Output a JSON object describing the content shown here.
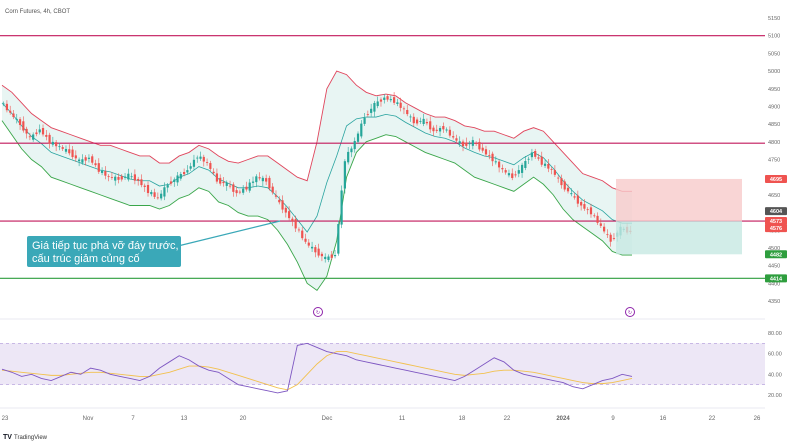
{
  "header": {
    "title": "Corn Futures, 4h, CBOT"
  },
  "brand": {
    "logo": "TV",
    "name": "TradingView"
  },
  "annotation": {
    "line1": "Giá tiếp tục phá vỡ đáy trước,",
    "line2": "cấu trúc giảm củng cố"
  },
  "colors": {
    "candle_up": "#26a69a",
    "candle_down": "#ef5350",
    "bb_upper": "#e0455c",
    "bb_lower": "#3aa64a",
    "bb_mid": "#2aa4a0",
    "bb_fill": "#e6f4f2",
    "level_red": "#c2185b",
    "level_green": "#2e9e3e",
    "rsi_line": "#7e57c2",
    "rsi_ma": "#f2c14e",
    "rsi_band": "#ede7f6",
    "note_bg": "#3aa8b8",
    "risk_fill": "#f8caca",
    "reward_fill": "#c7e9e2"
  },
  "chart_data": {
    "type": "candlestick",
    "yticks": [
      "5150",
      "5100",
      "5050",
      "5000",
      "4950",
      "4900",
      "4850",
      "4800",
      "4750",
      "4700",
      "4650",
      "4600",
      "4550",
      "4500",
      "4450",
      "4400",
      "4350"
    ],
    "xticks": [
      "23",
      "Nov",
      "7",
      "13",
      "20",
      "Dec",
      "11",
      "18",
      "22",
      "2024",
      "9",
      "16",
      "22",
      "26"
    ],
    "rsi_ticks": [
      "80.00",
      "60.00",
      "40.00",
      "20.00"
    ],
    "levels": [
      {
        "value": 5100,
        "label": "5100",
        "color": "#c2185b"
      },
      {
        "value": 4796,
        "label": "4796",
        "color": "#c2185b"
      },
      {
        "value": 4576,
        "label": "4576",
        "color": "#c2185b"
      },
      {
        "value": 4414,
        "label": "4414",
        "color": "#2e9e3e"
      }
    ],
    "price_labels": [
      {
        "value": 4695,
        "label": "4695",
        "color": "#ef5350"
      },
      {
        "value": 4604,
        "label": "4604",
        "color": "#555555"
      },
      {
        "value": 4576,
        "label": "4573",
        "color": "#ef5350"
      },
      {
        "value": 4556,
        "label": "4576",
        "color": "#ef5350"
      },
      {
        "value": 4482,
        "label": "4482",
        "color": "#2e9e3e"
      },
      {
        "value": 4414,
        "label": "4414",
        "color": "#2e9e3e"
      }
    ],
    "position": {
      "entry": 4576,
      "stop": 4695,
      "target": 4482
    },
    "price_path": [
      4915,
      4880,
      4850,
      4810,
      4835,
      4800,
      4785,
      4770,
      4745,
      4755,
      4720,
      4700,
      4695,
      4705,
      4690,
      4660,
      4640,
      4680,
      4700,
      4720,
      4760,
      4740,
      4690,
      4680,
      4655,
      4670,
      4700,
      4690,
      4640,
      4600,
      4560,
      4515,
      4490,
      4470,
      4480,
      4750,
      4800,
      4870,
      4905,
      4925,
      4915,
      4890,
      4855,
      4860,
      4830,
      4840,
      4810,
      4790,
      4800,
      4775,
      4750,
      4720,
      4700,
      4730,
      4770,
      4740,
      4720,
      4680,
      4650,
      4620,
      4600,
      4560,
      4520,
      4555,
      4545
    ],
    "bb_upper": [
      4960,
      4940,
      4910,
      4880,
      4860,
      4840,
      4830,
      4820,
      4810,
      4800,
      4790,
      4790,
      4780,
      4770,
      4760,
      4760,
      4740,
      4740,
      4760,
      4770,
      4790,
      4780,
      4760,
      4745,
      4740,
      4750,
      4760,
      4760,
      4740,
      4720,
      4700,
      4690,
      4800,
      4950,
      5000,
      4990,
      4960,
      4940,
      4930,
      4935,
      4930,
      4910,
      4895,
      4880,
      4870,
      4870,
      4860,
      4845,
      4840,
      4830,
      4830,
      4820,
      4810,
      4830,
      4840,
      4830,
      4800,
      4770,
      4740,
      4710,
      4700,
      4690,
      4670,
      4660,
      4660
    ],
    "bb_lower": [
      4860,
      4820,
      4780,
      4750,
      4730,
      4700,
      4690,
      4680,
      4670,
      4660,
      4650,
      4640,
      4630,
      4620,
      4620,
      4620,
      4610,
      4620,
      4640,
      4650,
      4670,
      4660,
      4630,
      4620,
      4600,
      4590,
      4590,
      4580,
      4550,
      4510,
      4460,
      4400,
      4380,
      4420,
      4520,
      4700,
      4770,
      4800,
      4810,
      4820,
      4815,
      4800,
      4785,
      4770,
      4760,
      4750,
      4740,
      4720,
      4700,
      4690,
      4680,
      4670,
      4660,
      4680,
      4700,
      4680,
      4650,
      4610,
      4580,
      4560,
      4540,
      4520,
      4490,
      4480,
      4480
    ],
    "rsi": [
      45,
      42,
      38,
      40,
      36,
      34,
      38,
      42,
      40,
      46,
      44,
      40,
      38,
      36,
      34,
      38,
      46,
      52,
      58,
      54,
      48,
      44,
      42,
      36,
      30,
      28,
      26,
      24,
      22,
      24,
      68,
      70,
      66,
      62,
      60,
      58,
      54,
      52,
      50,
      48,
      46,
      44,
      42,
      40,
      38,
      36,
      34,
      38,
      44,
      50,
      56,
      52,
      44,
      40,
      38,
      36,
      34,
      32,
      28,
      26,
      30,
      34,
      36,
      40,
      38
    ],
    "rsi_ma": [
      44,
      43,
      42,
      41,
      40,
      39,
      39,
      40,
      41,
      42,
      42,
      41,
      40,
      39,
      38,
      38,
      40,
      42,
      45,
      48,
      48,
      47,
      45,
      42,
      39,
      36,
      33,
      30,
      27,
      25,
      30,
      40,
      50,
      58,
      62,
      62,
      60,
      58,
      56,
      54,
      52,
      50,
      48,
      46,
      44,
      42,
      40,
      39,
      40,
      41,
      43,
      44,
      44,
      43,
      42,
      40,
      38,
      36,
      34,
      32,
      31,
      31,
      32,
      34,
      36
    ],
    "rsi_range": [
      20,
      80
    ]
  }
}
